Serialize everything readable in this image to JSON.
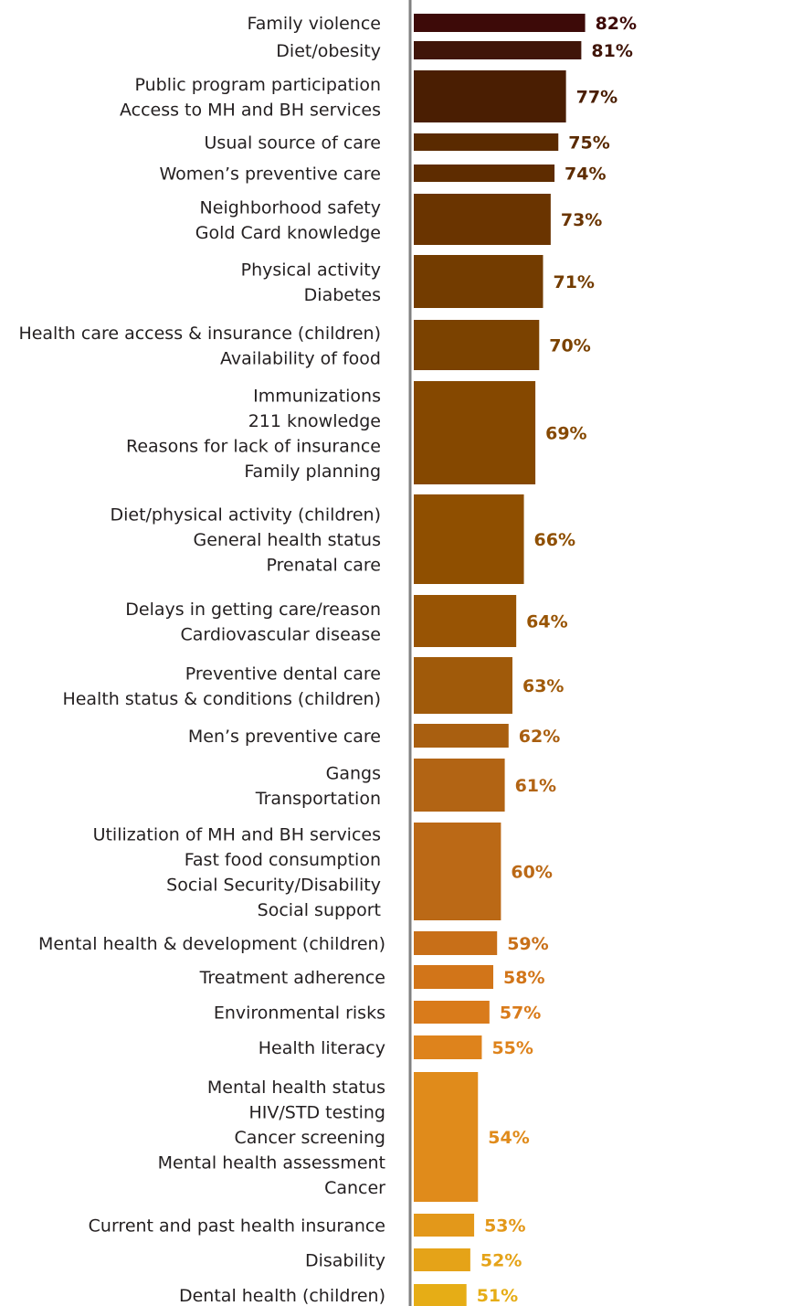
{
  "chart_data": {
    "type": "bar",
    "orientation": "horizontal",
    "title": "",
    "xlabel": "",
    "ylabel": "",
    "xlim": [
      0,
      100
    ],
    "grid": false,
    "legend": "none",
    "groups": [
      {
        "labels": [
          "Family violence"
        ],
        "value": 82,
        "value_label": "82%",
        "color": "#3d0a08"
      },
      {
        "labels": [
          "Diet/obesity"
        ],
        "value": 81,
        "value_label": "81%",
        "color": "#401509"
      },
      {
        "labels": [
          "Public program participation",
          "Access to MH and BH services"
        ],
        "value": 77,
        "value_label": "77%",
        "color": "#4a1e02"
      },
      {
        "labels": [
          "Usual source of care"
        ],
        "value": 75,
        "value_label": "75%",
        "color": "#5a2a00"
      },
      {
        "labels": [
          "Women’s preventive care"
        ],
        "value": 74,
        "value_label": "74%",
        "color": "#5e2c00"
      },
      {
        "labels": [
          "Neighborhood safety",
          "Gold Card knowledge"
        ],
        "value": 73,
        "value_label": "73%",
        "color": "#6a3400"
      },
      {
        "labels": [
          "Physical activity",
          "Diabetes"
        ],
        "value": 71,
        "value_label": "71%",
        "color": "#733c00"
      },
      {
        "labels": [
          "Health care access & insurance (children)",
          "Availability of food"
        ],
        "value": 70,
        "value_label": "70%",
        "color": "#7b4200"
      },
      {
        "labels": [
          "Immunizations",
          "211 knowledge",
          "Reasons for lack of insurance",
          "Family planning"
        ],
        "value": 69,
        "value_label": "69%",
        "color": "#854800"
      },
      {
        "labels": [
          "Diet/physical activity (children)",
          "General health status",
          "Prenatal care"
        ],
        "value": 66,
        "value_label": "66%",
        "color": "#8f4f00"
      },
      {
        "labels": [
          "Delays in getting care/reason",
          "Cardiovascular disease"
        ],
        "value": 64,
        "value_label": "64%",
        "color": "#985404"
      },
      {
        "labels": [
          "Preventive dental care",
          "Health status & conditions (children)"
        ],
        "value": 63,
        "value_label": "63%",
        "color": "#a05a0a"
      },
      {
        "labels": [
          "Men’s preventive care"
        ],
        "value": 62,
        "value_label": "62%",
        "color": "#a95f10"
      },
      {
        "labels": [
          "Gangs",
          "Transportation"
        ],
        "value": 61,
        "value_label": "61%",
        "color": "#b26414"
      },
      {
        "labels": [
          "Utilization of MH and BH services",
          "Fast food consumption",
          "Social Security/Disability",
          "Social support"
        ],
        "value": 60,
        "value_label": "60%",
        "color": "#bb6916"
      },
      {
        "labels": [
          "Mental health & development (children)"
        ],
        "value": 59,
        "value_label": "59%",
        "color": "#c86f18"
      },
      {
        "labels": [
          "Treatment adherence"
        ],
        "value": 58,
        "value_label": "58%",
        "color": "#d27519"
      },
      {
        "labels": [
          "Environmental risks"
        ],
        "value": 57,
        "value_label": "57%",
        "color": "#d97b1b"
      },
      {
        "labels": [
          "Health literacy"
        ],
        "value": 55,
        "value_label": "55%",
        "color": "#de831c"
      },
      {
        "labels": [
          "Mental health status",
          "HIV/STD testing",
          "Cancer screening",
          "Mental health assessment",
          "Cancer"
        ],
        "value": 54,
        "value_label": "54%",
        "color": "#e08b1b"
      },
      {
        "labels": [
          "Current and past health insurance"
        ],
        "value": 53,
        "value_label": "53%",
        "color": "#e3981a"
      },
      {
        "labels": [
          "Disability"
        ],
        "value": 52,
        "value_label": "52%",
        "color": "#e5a318"
      },
      {
        "labels": [
          "Dental health (children)"
        ],
        "value": 51,
        "value_label": "51%",
        "color": "#e6ad16"
      }
    ]
  }
}
